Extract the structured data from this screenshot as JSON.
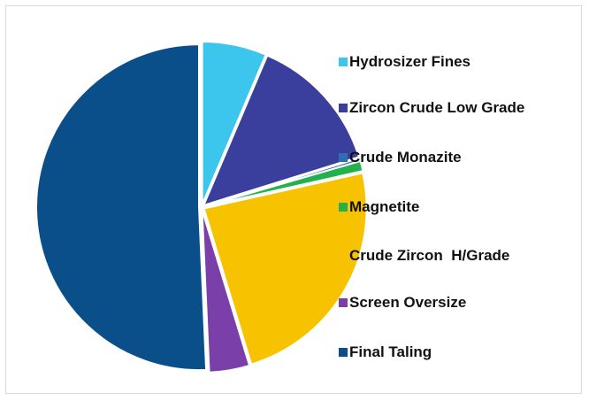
{
  "chart_data": {
    "type": "pie",
    "categories": [
      "Hydrosizer Fines",
      "Zircon Crude Low Grade",
      "Crude Monazite",
      "Magnetite",
      "Crude Zircon  H/Grade",
      "Screen Oversize",
      "Final Taling"
    ],
    "values": [
      6.4,
      13.8,
      0.3,
      1,
      23.8,
      4,
      50.7
    ],
    "colors": [
      "#3cc6ee",
      "#3a3f9e",
      "#2f6db5",
      "#22b14c",
      "#f7c200",
      "#7a3fa8",
      "#0b4f8a"
    ]
  }
}
